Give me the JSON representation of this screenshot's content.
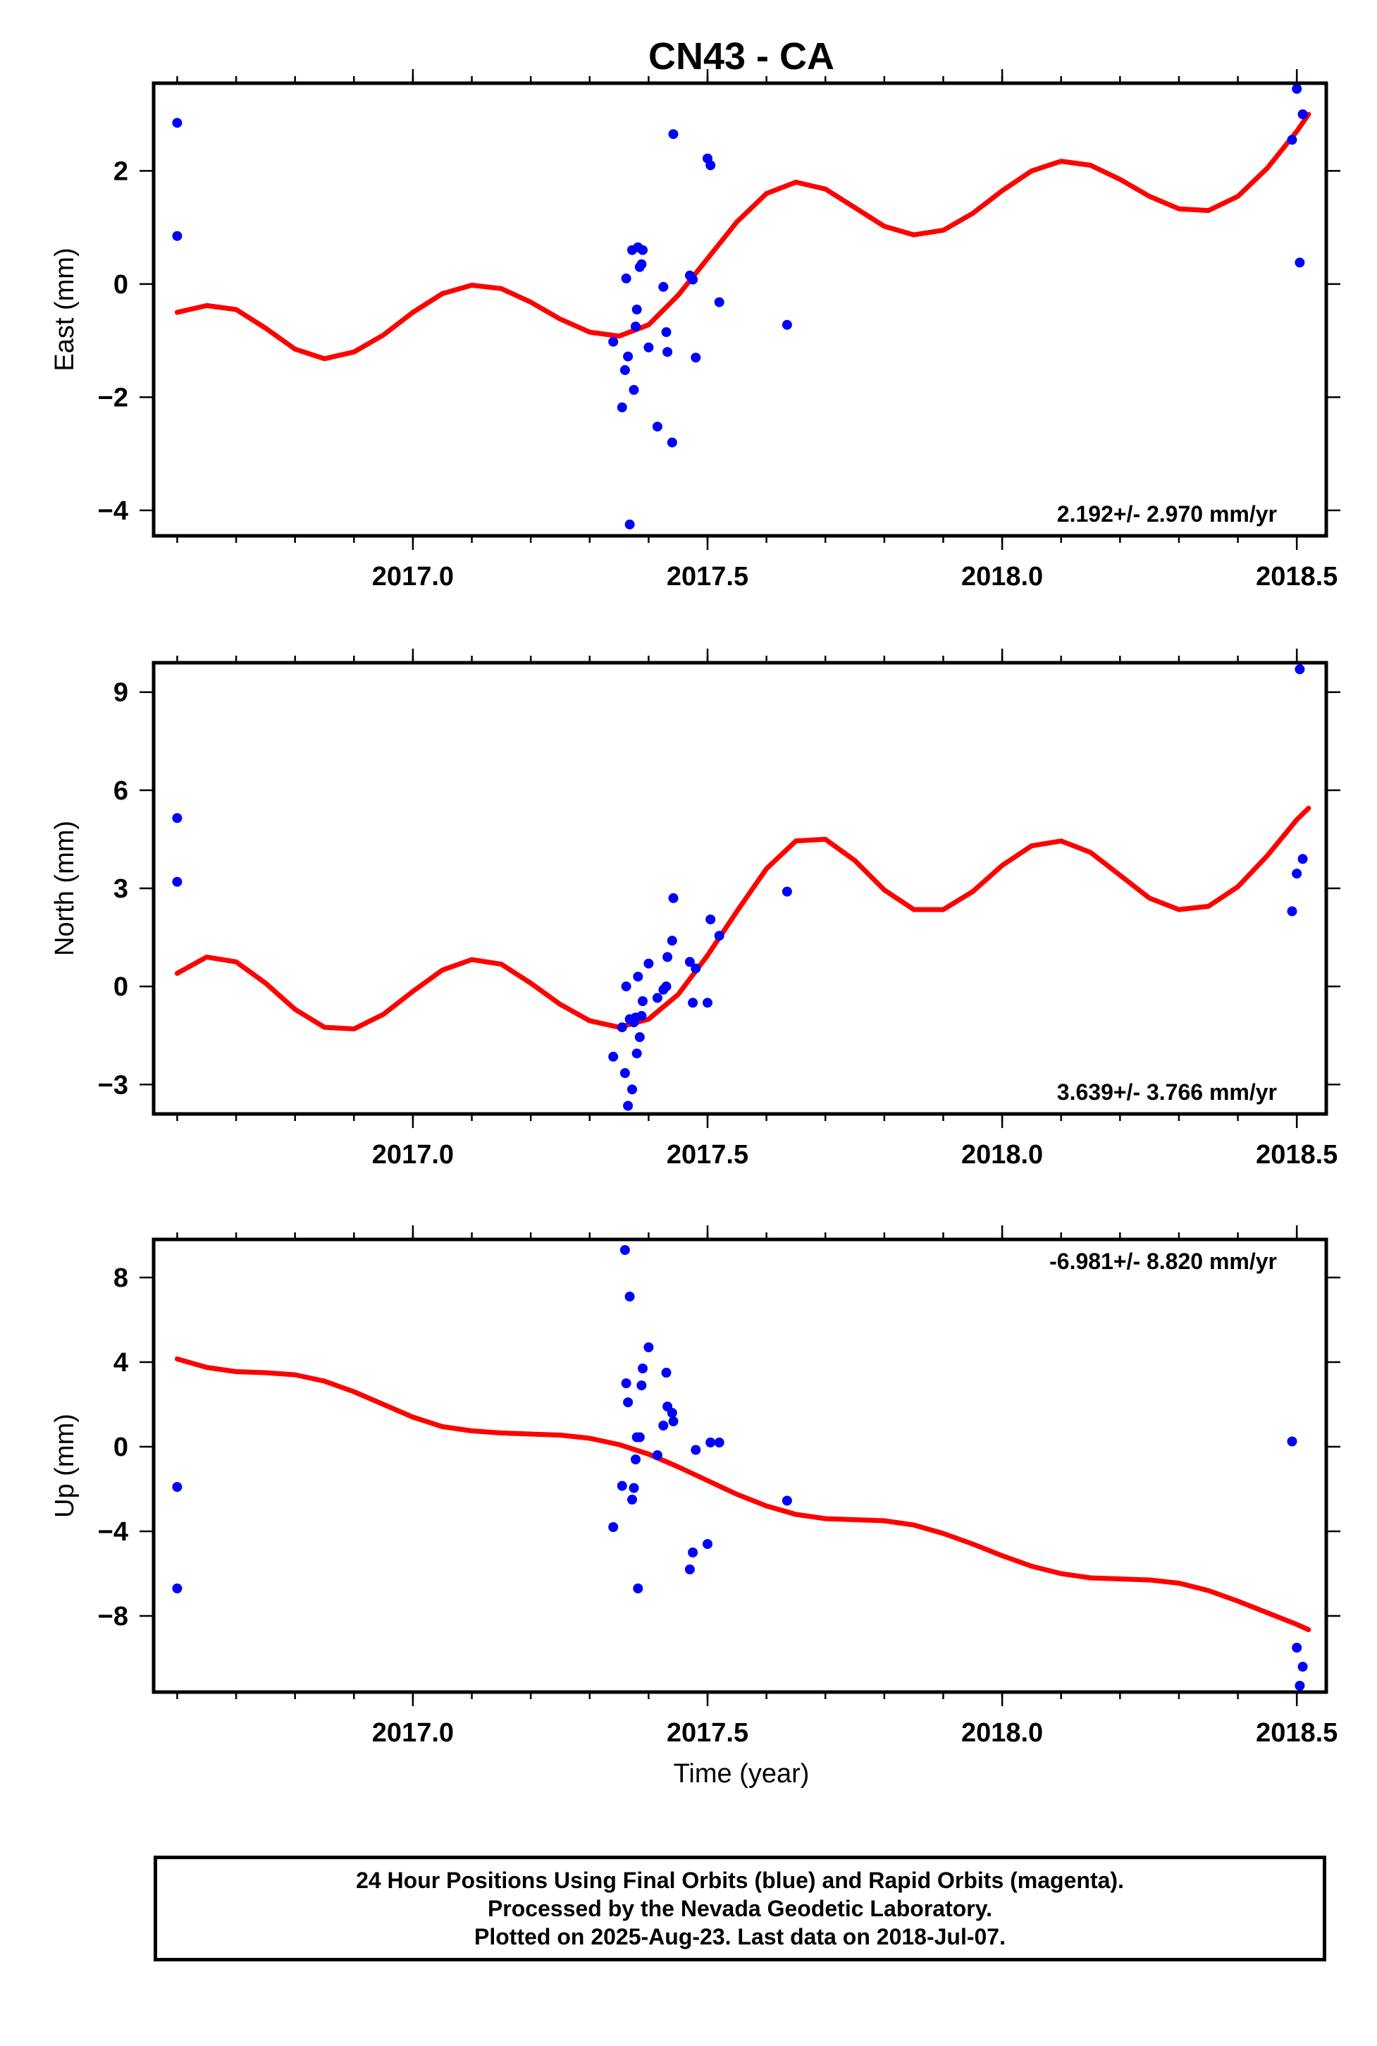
{
  "title": "CN43 - CA",
  "xlabel": "Time (year)",
  "footer": {
    "lines": [
      "24 Hour Positions Using Final Orbits (blue) and Rapid Orbits (magenta).",
      "Processed by the Nevada Geodetic Laboratory.",
      "Plotted on 2025-Aug-23. Last data on 2018-Jul-07."
    ]
  },
  "colors": {
    "points": "#0000ff",
    "fit": "#ff0000"
  },
  "chart_data": [
    {
      "type": "scatter",
      "ylabel": "East (mm)",
      "rate_label": "2.192+/- 2.970 mm/yr",
      "xlim": [
        2016.56,
        2018.55
      ],
      "ylim": [
        -4.45,
        3.55
      ],
      "xticks": [
        2017.0,
        2017.5,
        2018.0,
        2018.5
      ],
      "xtick_labels": [
        "2017.0",
        "2017.5",
        "2018.0",
        "2018.5"
      ],
      "yticks": [
        -4,
        -2,
        0,
        2
      ],
      "ytick_labels": [
        "−4",
        "−2",
        "0",
        "2"
      ],
      "points": [
        [
          2016.6,
          2.85
        ],
        [
          2016.6,
          0.85
        ],
        [
          2017.34,
          -1.02
        ],
        [
          2017.355,
          -2.18
        ],
        [
          2017.36,
          -1.52
        ],
        [
          2017.362,
          0.1
        ],
        [
          2017.365,
          -1.28
        ],
        [
          2017.368,
          -4.25
        ],
        [
          2017.372,
          0.6
        ],
        [
          2017.375,
          -1.87
        ],
        [
          2017.378,
          -0.75
        ],
        [
          2017.38,
          -0.45
        ],
        [
          2017.382,
          0.65
        ],
        [
          2017.385,
          0.3
        ],
        [
          2017.388,
          0.35
        ],
        [
          2017.39,
          0.6
        ],
        [
          2017.4,
          -1.12
        ],
        [
          2017.415,
          -2.52
        ],
        [
          2017.425,
          -0.05
        ],
        [
          2017.43,
          -0.85
        ],
        [
          2017.432,
          -1.2
        ],
        [
          2017.44,
          -2.8
        ],
        [
          2017.442,
          2.65
        ],
        [
          2017.47,
          0.15
        ],
        [
          2017.475,
          0.08
        ],
        [
          2017.48,
          -1.3
        ],
        [
          2017.5,
          2.22
        ],
        [
          2017.505,
          2.1
        ],
        [
          2017.52,
          -0.32
        ],
        [
          2017.635,
          -0.72
        ],
        [
          2018.492,
          2.55
        ],
        [
          2018.5,
          3.45
        ],
        [
          2018.505,
          0.38
        ],
        [
          2018.51,
          3.0
        ]
      ],
      "fit": {
        "x": [
          2016.6,
          2016.65,
          2016.7,
          2016.75,
          2016.8,
          2016.85,
          2016.9,
          2016.95,
          2017.0,
          2017.05,
          2017.1,
          2017.15,
          2017.2,
          2017.25,
          2017.3,
          2017.35,
          2017.4,
          2017.45,
          2017.5,
          2017.55,
          2017.6,
          2017.65,
          2017.7,
          2017.75,
          2017.8,
          2017.85,
          2017.9,
          2017.95,
          2018.0,
          2018.05,
          2018.1,
          2018.15,
          2018.2,
          2018.25,
          2018.3,
          2018.35,
          2018.4,
          2018.45,
          2018.5,
          2018.52
        ],
        "y": [
          -0.5,
          -0.38,
          -0.45,
          -0.78,
          -1.15,
          -1.32,
          -1.2,
          -0.9,
          -0.5,
          -0.17,
          -0.02,
          -0.08,
          -0.32,
          -0.62,
          -0.85,
          -0.92,
          -0.72,
          -0.2,
          0.45,
          1.1,
          1.6,
          1.8,
          1.68,
          1.35,
          1.02,
          0.87,
          0.95,
          1.25,
          1.65,
          2.0,
          2.17,
          2.1,
          1.85,
          1.55,
          1.33,
          1.3,
          1.55,
          2.05,
          2.7,
          3.0
        ]
      }
    },
    {
      "type": "scatter",
      "ylabel": "North (mm)",
      "rate_label": "3.639+/- 3.766 mm/yr",
      "xlim": [
        2016.56,
        2018.55
      ],
      "ylim": [
        -3.9,
        9.9
      ],
      "xticks": [
        2017.0,
        2017.5,
        2018.0,
        2018.5
      ],
      "xtick_labels": [
        "2017.0",
        "2017.5",
        "2018.0",
        "2018.5"
      ],
      "yticks": [
        -3,
        0,
        3,
        6,
        9
      ],
      "ytick_labels": [
        "−3",
        "0",
        "3",
        "6",
        "9"
      ],
      "points": [
        [
          2016.6,
          5.15
        ],
        [
          2016.6,
          3.2
        ],
        [
          2017.34,
          -2.15
        ],
        [
          2017.355,
          -1.25
        ],
        [
          2017.36,
          -2.65
        ],
        [
          2017.362,
          0.0
        ],
        [
          2017.365,
          -3.65
        ],
        [
          2017.368,
          -1.0
        ],
        [
          2017.372,
          -3.15
        ],
        [
          2017.375,
          -1.1
        ],
        [
          2017.378,
          -0.95
        ],
        [
          2017.38,
          -2.05
        ],
        [
          2017.382,
          0.3
        ],
        [
          2017.385,
          -1.55
        ],
        [
          2017.388,
          -0.9
        ],
        [
          2017.39,
          -0.45
        ],
        [
          2017.4,
          0.7
        ],
        [
          2017.415,
          -0.35
        ],
        [
          2017.425,
          -0.1
        ],
        [
          2017.43,
          0.0
        ],
        [
          2017.432,
          0.9
        ],
        [
          2017.44,
          1.4
        ],
        [
          2017.442,
          2.7
        ],
        [
          2017.47,
          0.75
        ],
        [
          2017.475,
          -0.5
        ],
        [
          2017.48,
          0.55
        ],
        [
          2017.5,
          -0.5
        ],
        [
          2017.505,
          2.05
        ],
        [
          2017.52,
          1.55
        ],
        [
          2017.635,
          2.9
        ],
        [
          2018.492,
          2.3
        ],
        [
          2018.5,
          3.45
        ],
        [
          2018.505,
          9.7
        ],
        [
          2018.51,
          3.9
        ]
      ],
      "fit": {
        "x": [
          2016.6,
          2016.65,
          2016.7,
          2016.75,
          2016.8,
          2016.85,
          2016.9,
          2016.95,
          2017.0,
          2017.05,
          2017.1,
          2017.15,
          2017.2,
          2017.25,
          2017.3,
          2017.35,
          2017.4,
          2017.45,
          2017.5,
          2017.55,
          2017.6,
          2017.65,
          2017.7,
          2017.75,
          2017.8,
          2017.85,
          2017.9,
          2017.95,
          2018.0,
          2018.05,
          2018.1,
          2018.15,
          2018.2,
          2018.25,
          2018.3,
          2018.35,
          2018.4,
          2018.45,
          2018.5,
          2018.52
        ],
        "y": [
          0.4,
          0.9,
          0.75,
          0.1,
          -0.7,
          -1.25,
          -1.3,
          -0.85,
          -0.15,
          0.5,
          0.82,
          0.68,
          0.1,
          -0.55,
          -1.05,
          -1.25,
          -1.0,
          -0.25,
          0.95,
          2.3,
          3.6,
          4.45,
          4.5,
          3.85,
          2.95,
          2.35,
          2.35,
          2.9,
          3.7,
          4.3,
          4.45,
          4.1,
          3.4,
          2.7,
          2.35,
          2.45,
          3.05,
          4.0,
          5.1,
          5.45
        ]
      }
    },
    {
      "type": "scatter",
      "ylabel": "Up (mm)",
      "rate_label": "-6.981+/- 8.820 mm/yr",
      "xlim": [
        2016.56,
        2018.55
      ],
      "ylim": [
        -11.6,
        9.8
      ],
      "xticks": [
        2017.0,
        2017.5,
        2018.0,
        2018.5
      ],
      "xtick_labels": [
        "2017.0",
        "2017.5",
        "2018.0",
        "2018.5"
      ],
      "yticks": [
        -8,
        -4,
        0,
        4,
        8
      ],
      "ytick_labels": [
        "−8",
        "−4",
        "0",
        "4",
        "8"
      ],
      "points": [
        [
          2016.6,
          -1.9
        ],
        [
          2016.6,
          -6.7
        ],
        [
          2017.34,
          -3.8
        ],
        [
          2017.355,
          -1.85
        ],
        [
          2017.36,
          9.3
        ],
        [
          2017.362,
          3.0
        ],
        [
          2017.365,
          2.1
        ],
        [
          2017.368,
          7.1
        ],
        [
          2017.372,
          -2.5
        ],
        [
          2017.375,
          -1.95
        ],
        [
          2017.378,
          -0.6
        ],
        [
          2017.38,
          0.45
        ],
        [
          2017.382,
          -6.7
        ],
        [
          2017.385,
          0.45
        ],
        [
          2017.388,
          2.9
        ],
        [
          2017.39,
          3.7
        ],
        [
          2017.4,
          4.7
        ],
        [
          2017.415,
          -0.4
        ],
        [
          2017.425,
          1.0
        ],
        [
          2017.43,
          3.5
        ],
        [
          2017.432,
          1.9
        ],
        [
          2017.44,
          1.6
        ],
        [
          2017.442,
          1.2
        ],
        [
          2017.47,
          -5.8
        ],
        [
          2017.475,
          -5.0
        ],
        [
          2017.48,
          -0.15
        ],
        [
          2017.5,
          -4.6
        ],
        [
          2017.505,
          0.2
        ],
        [
          2017.52,
          0.2
        ],
        [
          2017.635,
          -2.55
        ],
        [
          2018.492,
          0.25
        ],
        [
          2018.5,
          -9.5
        ],
        [
          2018.505,
          -11.3
        ],
        [
          2018.51,
          -10.4
        ]
      ],
      "fit": {
        "x": [
          2016.6,
          2016.65,
          2016.7,
          2016.75,
          2016.8,
          2016.85,
          2016.9,
          2016.95,
          2017.0,
          2017.05,
          2017.1,
          2017.15,
          2017.2,
          2017.25,
          2017.3,
          2017.35,
          2017.4,
          2017.45,
          2017.5,
          2017.55,
          2017.6,
          2017.65,
          2017.7,
          2017.75,
          2017.8,
          2017.85,
          2017.9,
          2017.95,
          2018.0,
          2018.05,
          2018.1,
          2018.15,
          2018.2,
          2018.25,
          2018.3,
          2018.35,
          2018.4,
          2018.45,
          2018.5,
          2018.52
        ],
        "y": [
          4.15,
          3.75,
          3.55,
          3.5,
          3.4,
          3.1,
          2.6,
          2.0,
          1.4,
          0.95,
          0.75,
          0.65,
          0.6,
          0.55,
          0.4,
          0.1,
          -0.35,
          -0.95,
          -1.6,
          -2.25,
          -2.8,
          -3.2,
          -3.4,
          -3.45,
          -3.5,
          -3.7,
          -4.1,
          -4.6,
          -5.15,
          -5.65,
          -6.0,
          -6.2,
          -6.25,
          -6.3,
          -6.45,
          -6.8,
          -7.3,
          -7.85,
          -8.4,
          -8.65
        ]
      }
    }
  ]
}
